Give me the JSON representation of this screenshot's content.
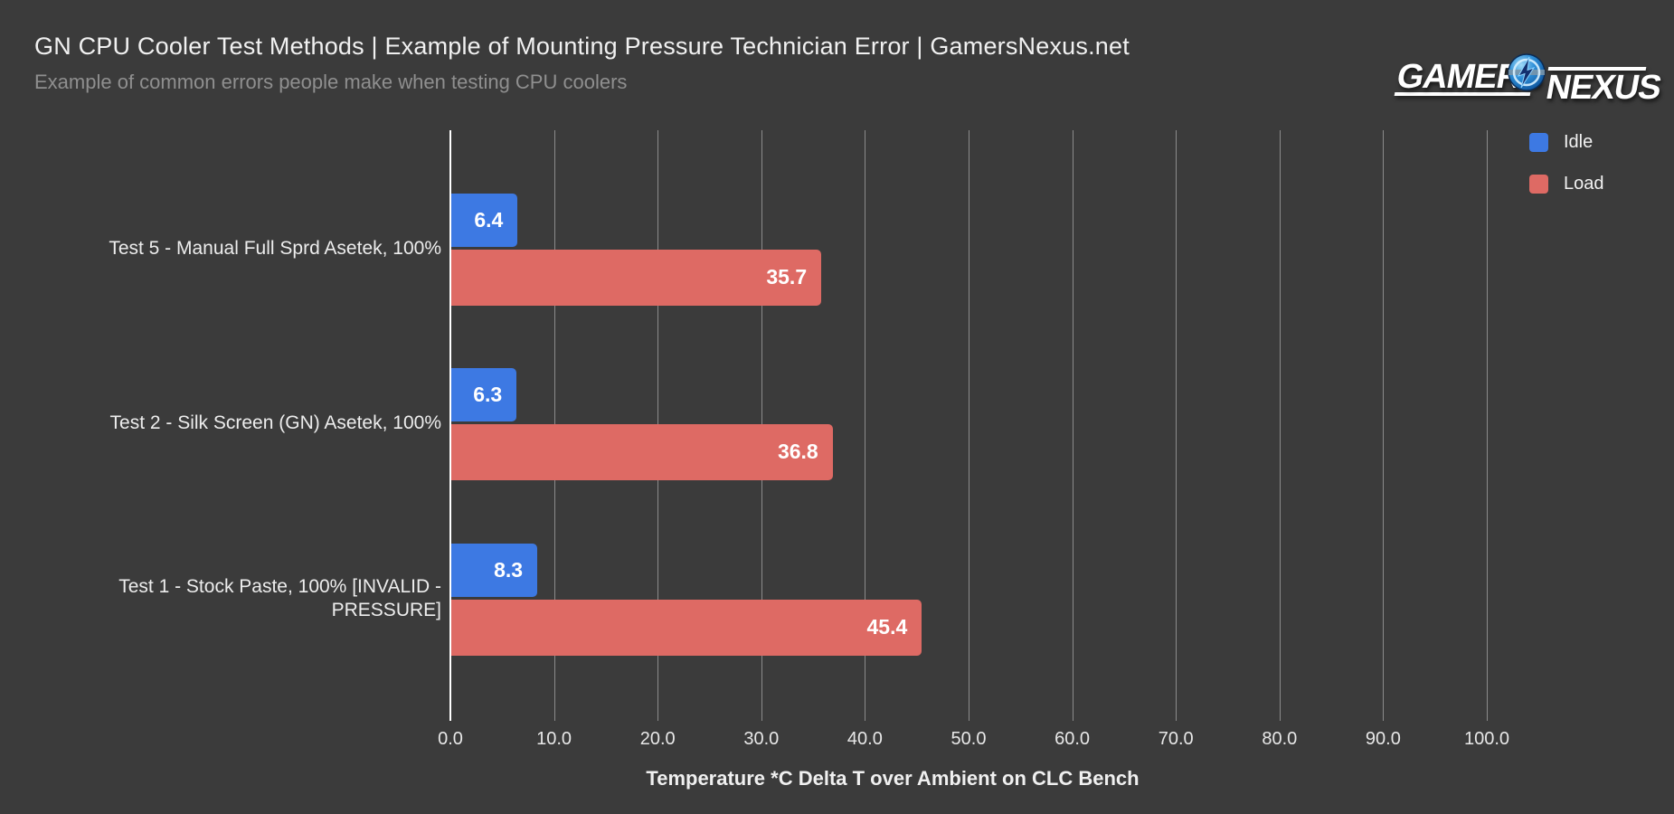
{
  "header": {
    "title": "GN CPU Cooler Test Methods | Example of Mounting Pressure Technician Error | GamersNexus.net",
    "subtitle": "Example of common errors people make when testing CPU coolers"
  },
  "logo": {
    "part1": "GAMERS",
    "part2": "NEXUS",
    "globe_icon": "globe-lightning-icon"
  },
  "theme": {
    "background": "#3b3b3b",
    "title_color": "#f1f1f1",
    "subtitle_color": "#8f8f8f",
    "grid_color": "rgba(205,205,205,0.55)",
    "axis_line_color": "#ffffff",
    "idle_color": "#3d79e3",
    "load_color": "#de6a64"
  },
  "chart_data": {
    "type": "bar",
    "orientation": "horizontal",
    "title": "GN CPU Cooler Test Methods | Example of Mounting Pressure Technician Error | GamersNexus.net",
    "subtitle": "Example of common errors people make when testing CPU coolers",
    "categories": [
      "Test 5 - Manual Full Sprd Asetek, 100%",
      "Test 2 - Silk Screen (GN) Asetek, 100%",
      "Test 1 - Stock Paste, 100% [INVALID - PRESSURE]"
    ],
    "series": [
      {
        "name": "Idle",
        "color": "#3d79e3",
        "values": [
          6.4,
          6.3,
          8.3
        ]
      },
      {
        "name": "Load",
        "color": "#de6a64",
        "values": [
          35.7,
          36.8,
          45.4
        ]
      }
    ],
    "xlabel": "Temperature *C Delta T over Ambient on CLC Bench",
    "ylabel": "",
    "xlim": [
      0,
      100
    ],
    "x_ticks": [
      "0.0",
      "10.0",
      "20.0",
      "30.0",
      "40.0",
      "50.0",
      "60.0",
      "70.0",
      "80.0",
      "90.0",
      "100.0"
    ],
    "grid": true,
    "legend_position": "top-right",
    "value_label_decimals": 1
  }
}
